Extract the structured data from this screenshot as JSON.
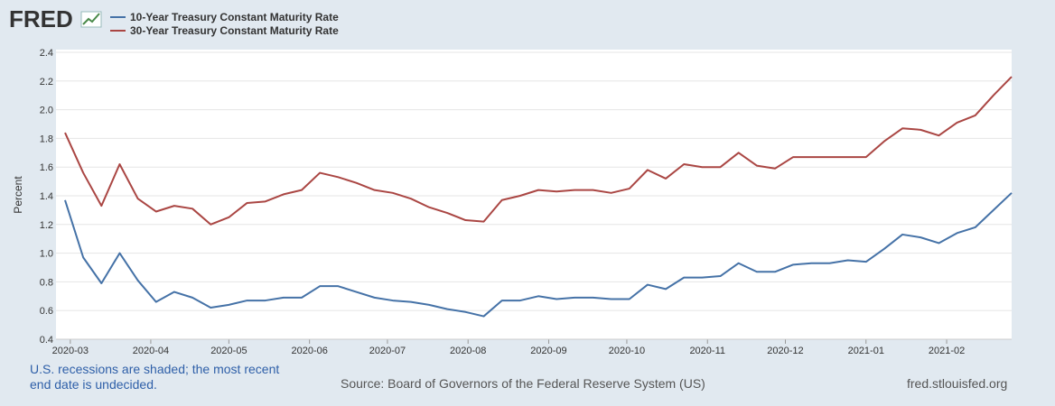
{
  "chart_data": {
    "type": "line",
    "logo": "FRED",
    "y_label": "Percent",
    "note": "U.S. recessions are shaded; the most recent end date is undecided.",
    "source": "Source: Board of Governors of the Federal Reserve System (US)",
    "site": "fred.stlouisfed.org",
    "x": [
      0,
      1,
      2,
      3,
      4,
      5,
      6,
      7,
      8,
      9,
      10,
      11,
      12,
      13,
      14,
      15,
      16,
      17,
      18,
      19,
      20,
      21,
      22,
      23,
      24,
      25,
      26,
      27,
      28,
      29,
      30,
      31,
      32,
      33,
      34,
      35,
      36,
      37,
      38,
      39,
      40,
      41,
      42,
      43,
      44,
      45,
      46,
      47,
      48,
      49,
      50,
      51,
      52
    ],
    "xlim": [
      0,
      52
    ],
    "xticks": [
      {
        "value": 0.29,
        "label": "2020-03"
      },
      {
        "value": 4.71,
        "label": "2020-04"
      },
      {
        "value": 9.0,
        "label": "2020-05"
      },
      {
        "value": 13.43,
        "label": "2020-06"
      },
      {
        "value": 17.71,
        "label": "2020-07"
      },
      {
        "value": 22.14,
        "label": "2020-08"
      },
      {
        "value": 26.57,
        "label": "2020-09"
      },
      {
        "value": 30.86,
        "label": "2020-10"
      },
      {
        "value": 35.29,
        "label": "2020-11"
      },
      {
        "value": 39.57,
        "label": "2020-12"
      },
      {
        "value": 44.0,
        "label": "2021-01"
      },
      {
        "value": 48.43,
        "label": "2021-02"
      }
    ],
    "ylim": [
      0.4,
      2.4
    ],
    "yticks": [
      0.4,
      0.6,
      0.8,
      {
        "value": 1.0,
        "label": "1.0"
      },
      1.2,
      1.4,
      1.6,
      1.8,
      {
        "value": 2.0,
        "label": "2.0"
      },
      2.2,
      2.4
    ],
    "grid": true,
    "series": [
      {
        "name": "10-Year Treasury Constant Maturity Rate",
        "color": "#4572a7",
        "values": [
          1.37,
          0.97,
          0.79,
          1.0,
          0.81,
          0.66,
          0.73,
          0.69,
          0.62,
          0.64,
          0.67,
          0.67,
          0.69,
          0.69,
          0.77,
          0.77,
          0.73,
          0.69,
          0.67,
          0.66,
          0.64,
          0.61,
          0.59,
          0.56,
          0.67,
          0.67,
          0.7,
          0.68,
          0.69,
          0.69,
          0.68,
          0.68,
          0.78,
          0.75,
          0.83,
          0.83,
          0.84,
          0.93,
          0.87,
          0.87,
          0.92,
          0.93,
          0.93,
          0.95,
          0.94,
          1.03,
          1.13,
          1.11,
          1.07,
          1.14,
          1.18,
          1.3,
          1.42
        ]
      },
      {
        "name": "30-Year Treasury Constant Maturity Rate",
        "color": "#aa4643",
        "values": [
          1.84,
          1.56,
          1.33,
          1.62,
          1.38,
          1.29,
          1.33,
          1.31,
          1.2,
          1.25,
          1.35,
          1.36,
          1.41,
          1.44,
          1.56,
          1.53,
          1.49,
          1.44,
          1.42,
          1.38,
          1.32,
          1.28,
          1.23,
          1.22,
          1.37,
          1.4,
          1.44,
          1.43,
          1.44,
          1.44,
          1.42,
          1.45,
          1.58,
          1.52,
          1.62,
          1.6,
          1.6,
          1.7,
          1.61,
          1.59,
          1.67,
          1.67,
          1.67,
          1.67,
          1.67,
          1.78,
          1.87,
          1.86,
          1.82,
          1.91,
          1.96,
          2.1,
          2.23
        ]
      }
    ]
  }
}
